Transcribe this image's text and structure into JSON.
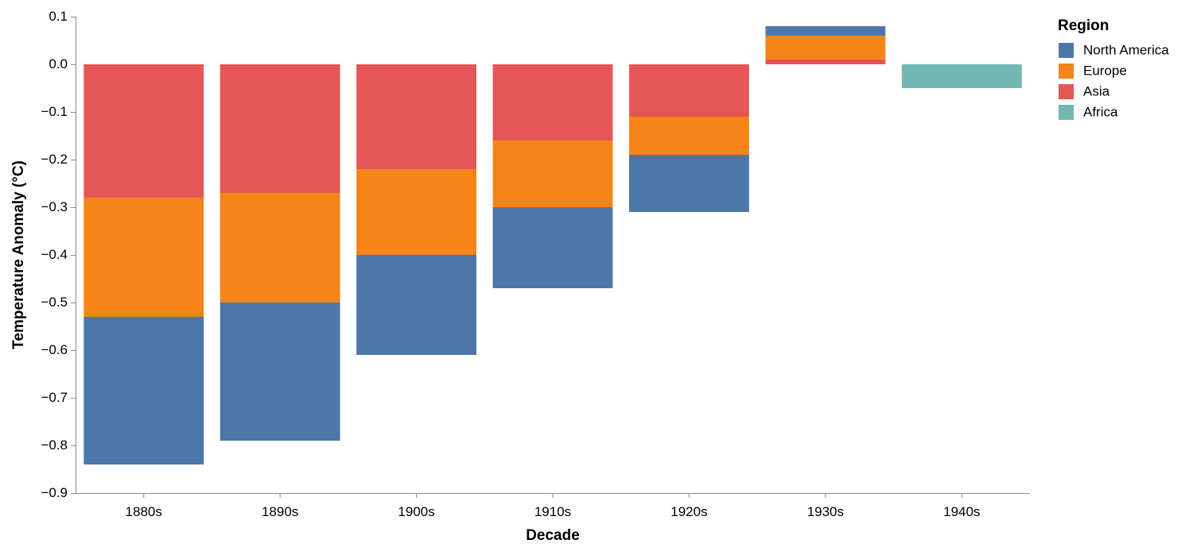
{
  "chart_data": {
    "type": "bar",
    "stacked": true,
    "title": "",
    "xlabel": "Decade",
    "ylabel": "Temperature Anomaly (°C)",
    "ylim": [
      -0.9,
      0.1
    ],
    "yticks": [
      0.1,
      0.0,
      -0.1,
      -0.2,
      -0.3,
      -0.4,
      -0.5,
      -0.6,
      -0.7,
      -0.8,
      -0.9
    ],
    "ytick_labels": [
      "0.1",
      "0.0",
      "−0.1",
      "−0.2",
      "−0.3",
      "−0.4",
      "−0.5",
      "−0.6",
      "−0.7",
      "−0.8",
      "−0.9"
    ],
    "categories": [
      "1880s",
      "1890s",
      "1900s",
      "1910s",
      "1920s",
      "1930s",
      "1940s"
    ],
    "grid": false,
    "legend": {
      "title": "Region",
      "placement": "top-right"
    },
    "series": [
      {
        "name": "Asia",
        "color": "#e45756",
        "values": [
          -0.28,
          -0.27,
          -0.22,
          -0.16,
          -0.11,
          0.01,
          null
        ]
      },
      {
        "name": "Europe",
        "color": "#f58518",
        "values": [
          -0.25,
          -0.23,
          -0.18,
          -0.14,
          -0.08,
          0.05,
          null
        ]
      },
      {
        "name": "North America",
        "color": "#4c78a8",
        "values": [
          -0.31,
          -0.29,
          -0.21,
          -0.17,
          -0.12,
          0.02,
          null
        ]
      },
      {
        "name": "Africa",
        "color": "#72b7b2",
        "values": [
          null,
          null,
          null,
          null,
          null,
          null,
          -0.05
        ]
      }
    ],
    "legend_order": [
      "North America",
      "Europe",
      "Asia",
      "Africa"
    ]
  }
}
